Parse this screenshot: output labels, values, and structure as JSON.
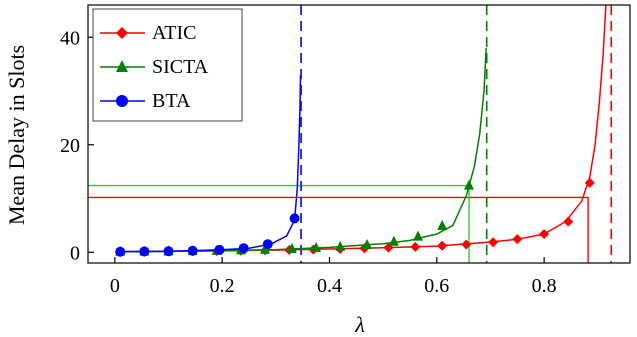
{
  "chart_data": {
    "type": "line",
    "xlabel": "λ",
    "ylabel": "Mean Delay in Slots",
    "xlim": [
      -0.05,
      0.96
    ],
    "ylim": [
      -2,
      46
    ],
    "x_ticks": [
      0,
      0.2,
      0.4,
      0.6,
      0.8
    ],
    "x_tick_labels": [
      "0",
      "0.2",
      "0.4",
      "0.6",
      "0.8"
    ],
    "y_ticks": [
      0,
      20,
      40
    ],
    "y_tick_labels": [
      "0",
      "20",
      "40"
    ],
    "grid": false,
    "legend_position": "top-left",
    "series": [
      {
        "name": "ATIC",
        "color": "#ff0000",
        "marker": "diamond",
        "curve": [
          [
            0.01,
            0.1
          ],
          [
            0.1,
            0.15
          ],
          [
            0.2,
            0.25
          ],
          [
            0.3,
            0.4
          ],
          [
            0.4,
            0.6
          ],
          [
            0.5,
            0.85
          ],
          [
            0.6,
            1.15
          ],
          [
            0.7,
            1.9
          ],
          [
            0.75,
            2.4
          ],
          [
            0.8,
            3.4
          ],
          [
            0.84,
            5.7
          ],
          [
            0.87,
            9.5
          ],
          [
            0.885,
            14
          ],
          [
            0.895,
            20
          ],
          [
            0.903,
            28
          ],
          [
            0.91,
            37
          ],
          [
            0.915,
            46
          ]
        ],
        "markers": [
          [
            0.01,
            0.1
          ],
          [
            0.055,
            0.12
          ],
          [
            0.1,
            0.15
          ],
          [
            0.145,
            0.18
          ],
          [
            0.19,
            0.22
          ],
          [
            0.235,
            0.28
          ],
          [
            0.28,
            0.35
          ],
          [
            0.325,
            0.42
          ],
          [
            0.37,
            0.5
          ],
          [
            0.42,
            0.6
          ],
          [
            0.465,
            0.72
          ],
          [
            0.51,
            0.85
          ],
          [
            0.56,
            1.0
          ],
          [
            0.61,
            1.2
          ],
          [
            0.655,
            1.45
          ],
          [
            0.705,
            1.85
          ],
          [
            0.75,
            2.45
          ],
          [
            0.8,
            3.4
          ],
          [
            0.845,
            5.7
          ],
          [
            0.885,
            12.9
          ]
        ],
        "asymptote_x": 0.925,
        "reference_y": 10.2,
        "reference_x": 0.882
      },
      {
        "name": "SICTA",
        "color": "#008000",
        "marker": "triangle",
        "curve": [
          [
            0.01,
            0.1
          ],
          [
            0.1,
            0.15
          ],
          [
            0.2,
            0.3
          ],
          [
            0.3,
            0.5
          ],
          [
            0.4,
            0.9
          ],
          [
            0.5,
            1.6
          ],
          [
            0.55,
            2.2
          ],
          [
            0.6,
            3.4
          ],
          [
            0.63,
            5
          ],
          [
            0.655,
            10.5
          ],
          [
            0.67,
            16
          ],
          [
            0.68,
            22
          ],
          [
            0.688,
            30
          ],
          [
            0.692,
            38
          ]
        ],
        "markers": [
          [
            0.01,
            0.1
          ],
          [
            0.055,
            0.12
          ],
          [
            0.1,
            0.15
          ],
          [
            0.145,
            0.2
          ],
          [
            0.19,
            0.26
          ],
          [
            0.235,
            0.34
          ],
          [
            0.28,
            0.45
          ],
          [
            0.33,
            0.6
          ],
          [
            0.375,
            0.8
          ],
          [
            0.42,
            1.0
          ],
          [
            0.47,
            1.35
          ],
          [
            0.52,
            1.95
          ],
          [
            0.565,
            2.9
          ],
          [
            0.61,
            4.9
          ],
          [
            0.66,
            12.4
          ]
        ],
        "asymptote_x": 0.693,
        "reference_y": 12.4,
        "reference_x": 0.66,
        "reference_color": "#33cc33"
      },
      {
        "name": "BTA",
        "color": "#0000ff",
        "marker": "circle",
        "curve": [
          [
            0.01,
            0.1
          ],
          [
            0.1,
            0.2
          ],
          [
            0.2,
            0.45
          ],
          [
            0.25,
            0.75
          ],
          [
            0.29,
            1.5
          ],
          [
            0.32,
            3
          ],
          [
            0.335,
            6
          ],
          [
            0.34,
            12
          ],
          [
            0.343,
            20
          ],
          [
            0.345,
            27
          ],
          [
            0.346,
            33
          ]
        ],
        "markers": [
          [
            0.01,
            0.1
          ],
          [
            0.055,
            0.15
          ],
          [
            0.1,
            0.2
          ],
          [
            0.145,
            0.28
          ],
          [
            0.195,
            0.45
          ],
          [
            0.24,
            0.75
          ],
          [
            0.285,
            1.5
          ],
          [
            0.335,
            6.3
          ]
        ],
        "asymptote_x": 0.347
      }
    ]
  }
}
